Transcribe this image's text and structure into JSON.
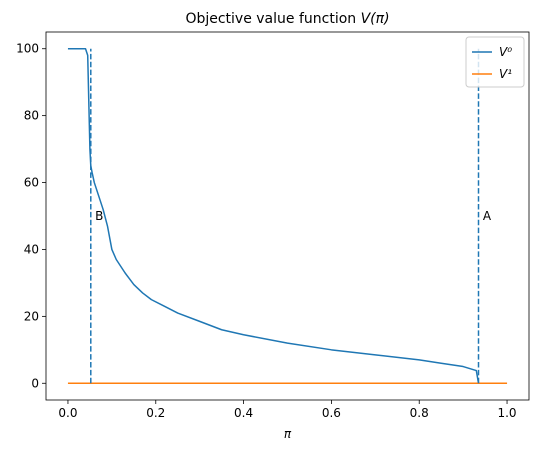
{
  "chart_data": {
    "type": "line",
    "title": "Objective value function V(π)",
    "xlabel": "π",
    "ylabel": "",
    "xlim": [
      -0.05,
      1.05
    ],
    "ylim": [
      -5,
      105
    ],
    "xticks": [
      0.0,
      0.2,
      0.4,
      0.6,
      0.8,
      1.0
    ],
    "xtick_labels": [
      "0.0",
      "0.2",
      "0.4",
      "0.6",
      "0.8",
      "1.0"
    ],
    "yticks": [
      0,
      20,
      40,
      60,
      80,
      100
    ],
    "ytick_labels": [
      "0",
      "20",
      "40",
      "60",
      "80",
      "100"
    ],
    "grid": false,
    "legend_position": "top-right",
    "series": [
      {
        "name": "V⁰",
        "color": "#1f77b4",
        "style": "solid",
        "x": [
          0.0,
          0.04,
          0.045,
          0.05,
          0.052,
          0.055,
          0.06,
          0.07,
          0.08,
          0.09,
          0.1,
          0.11,
          0.13,
          0.15,
          0.17,
          0.19,
          0.22,
          0.25,
          0.3,
          0.35,
          0.4,
          0.5,
          0.6,
          0.7,
          0.8,
          0.85,
          0.9,
          0.93,
          0.935
        ],
        "y": [
          100,
          100,
          98,
          70,
          65,
          63,
          60,
          56,
          52,
          47,
          40,
          37,
          33,
          29.5,
          27,
          25,
          23,
          21,
          18.5,
          16,
          14.5,
          12,
          10,
          8.5,
          7,
          6,
          5,
          3.8,
          0
        ]
      },
      {
        "name": "V¹",
        "color": "#ff7f0e",
        "style": "solid",
        "x": [
          0.0,
          1.0
        ],
        "y": [
          0,
          0
        ]
      }
    ],
    "vlines": [
      {
        "x": 0.052,
        "ymin": 0,
        "ymax": 100,
        "color": "#1f77b4",
        "style": "dashed"
      },
      {
        "x": 0.935,
        "ymin": 0,
        "ymax": 100,
        "color": "#1f77b4",
        "style": "dashed"
      }
    ],
    "annotations": [
      {
        "text": "B",
        "x": 0.062,
        "y": 50
      },
      {
        "text": "A",
        "x": 0.945,
        "y": 50
      }
    ]
  }
}
